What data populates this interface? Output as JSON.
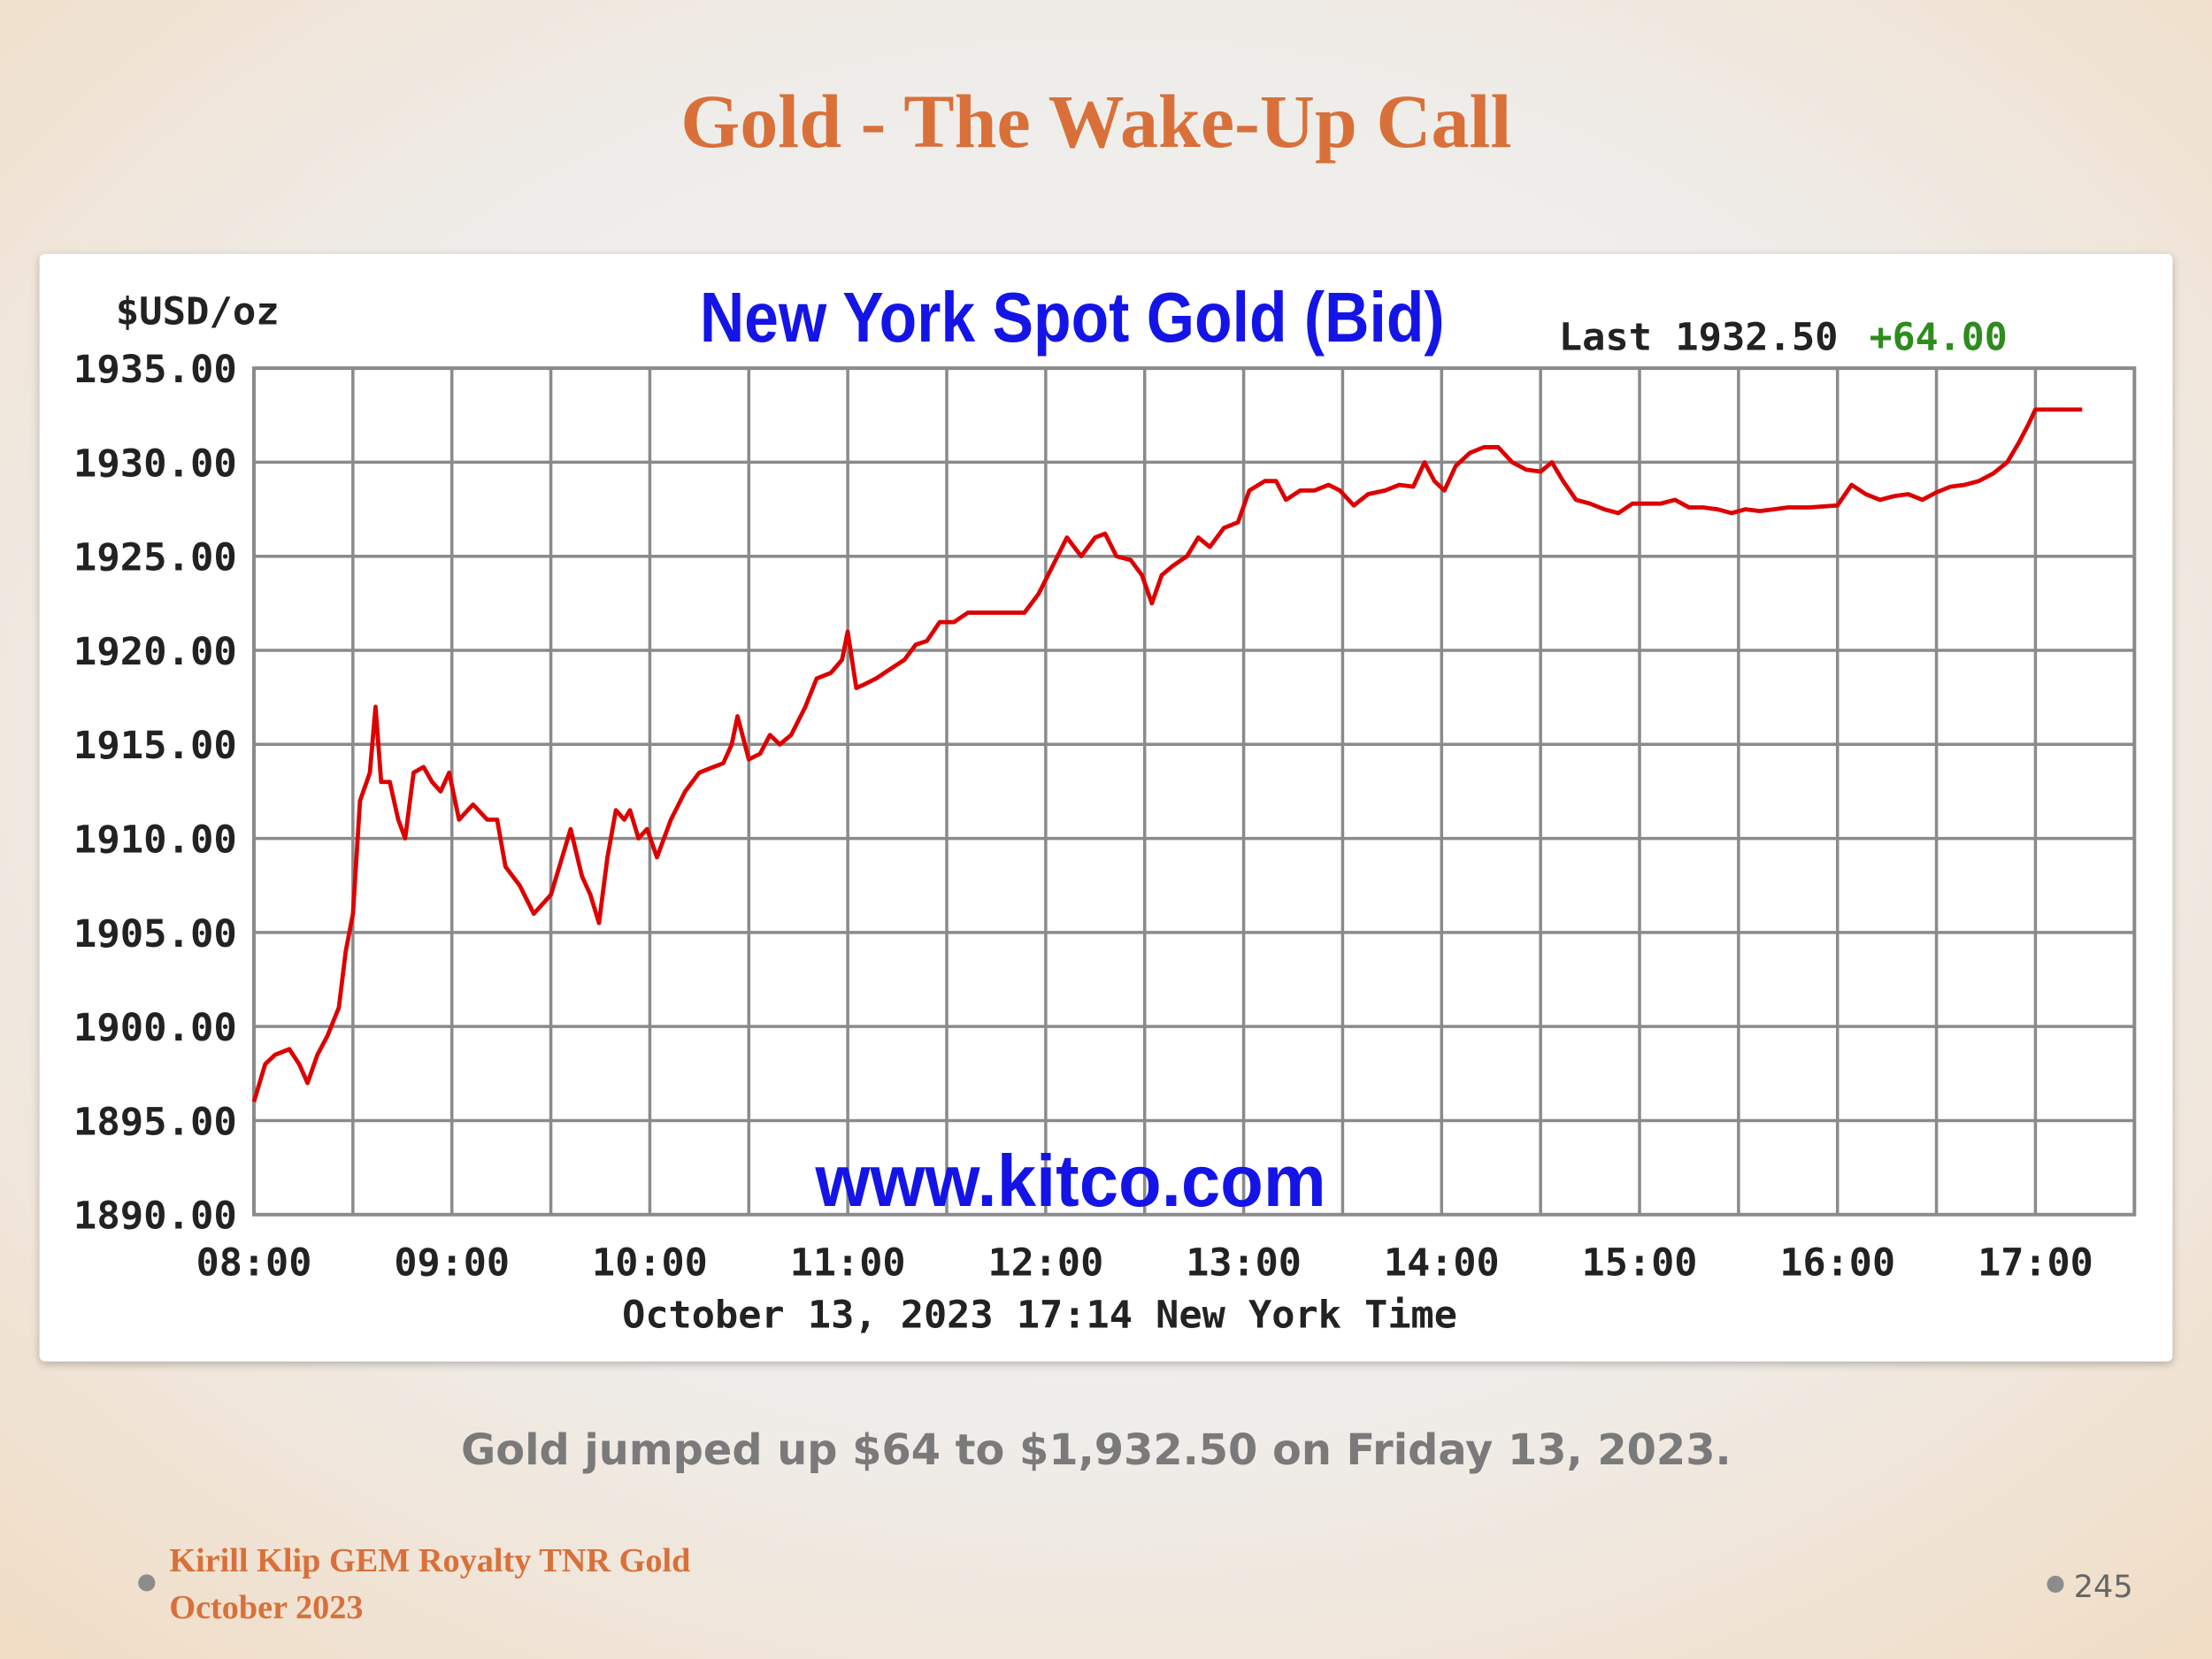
{
  "slide": {
    "title": "Gold - The Wake-Up Call",
    "caption": "Gold jumped up $64 to $1,932.50 on Friday 13, 2023.",
    "footer_lines": [
      "Kirill Klip GEM Royalty TNR Gold",
      "October 2023"
    ],
    "page_number": "245"
  },
  "chart_data": {
    "type": "line",
    "title": "New York Spot Gold (Bid)",
    "y_label": "$USD/oz",
    "x_label": "October 13, 2023 17:14 New York Time",
    "last": "Last 1932.50",
    "change": "+64.00",
    "change_color": "#2e8b1e",
    "watermark": "www.kitco.com",
    "color": "#dd0000",
    "grid": true,
    "xlim": [
      8,
      17.5
    ],
    "ylim": [
      1890,
      1935
    ],
    "xticks": [
      {
        "value": 8,
        "label": "08:00"
      },
      {
        "value": 9,
        "label": "09:00"
      },
      {
        "value": 10,
        "label": "10:00"
      },
      {
        "value": 11,
        "label": "11:00"
      },
      {
        "value": 12,
        "label": "12:00"
      },
      {
        "value": 13,
        "label": "13:00"
      },
      {
        "value": 14,
        "label": "14:00"
      },
      {
        "value": 15,
        "label": "15:00"
      },
      {
        "value": 16,
        "label": "16:00"
      },
      {
        "value": 17,
        "label": "17:00"
      }
    ],
    "x_minor_ticks": [
      8.5,
      9.5,
      10.5,
      11.5,
      12.5,
      13.5,
      14.5,
      15.5,
      16.5,
      17.5
    ],
    "yticks": [
      {
        "value": 1890,
        "label": "1890.00"
      },
      {
        "value": 1895,
        "label": "1895.00"
      },
      {
        "value": 1900,
        "label": "1900.00"
      },
      {
        "value": 1905,
        "label": "1905.00"
      },
      {
        "value": 1910,
        "label": "1910.00"
      },
      {
        "value": 1915,
        "label": "1915.00"
      },
      {
        "value": 1920,
        "label": "1920.00"
      },
      {
        "value": 1925,
        "label": "1925.00"
      },
      {
        "value": 1930,
        "label": "1930.00"
      },
      {
        "value": 1935,
        "label": "1935.00"
      }
    ],
    "x": [
      8.0,
      8.057,
      8.107,
      8.179,
      8.229,
      8.271,
      8.321,
      8.371,
      8.429,
      8.464,
      8.5,
      8.536,
      8.586,
      8.614,
      8.643,
      8.686,
      8.729,
      8.764,
      8.807,
      8.857,
      8.9,
      8.943,
      8.986,
      9.036,
      9.107,
      9.179,
      9.229,
      9.271,
      9.343,
      9.414,
      9.5,
      9.557,
      9.6,
      9.657,
      9.7,
      9.743,
      9.786,
      9.829,
      9.871,
      9.9,
      9.943,
      9.986,
      10.036,
      10.107,
      10.179,
      10.25,
      10.321,
      10.371,
      10.414,
      10.443,
      10.5,
      10.557,
      10.607,
      10.657,
      10.714,
      10.786,
      10.843,
      10.914,
      10.971,
      11.0,
      11.043,
      11.086,
      11.143,
      11.214,
      11.286,
      11.343,
      11.4,
      11.464,
      11.536,
      11.607,
      11.679,
      11.75,
      11.821,
      11.893,
      11.964,
      12.036,
      12.107,
      12.179,
      12.25,
      12.3,
      12.357,
      12.429,
      12.486,
      12.536,
      12.586,
      12.643,
      12.714,
      12.771,
      12.829,
      12.9,
      12.971,
      13.029,
      13.107,
      13.164,
      13.214,
      13.286,
      13.357,
      13.429,
      13.486,
      13.557,
      13.629,
      13.714,
      13.786,
      13.857,
      13.914,
      13.964,
      14.014,
      14.071,
      14.143,
      14.214,
      14.286,
      14.357,
      14.429,
      14.5,
      14.557,
      14.614,
      14.679,
      14.75,
      14.821,
      14.893,
      14.964,
      15.036,
      15.107,
      15.179,
      15.25,
      15.321,
      15.393,
      15.464,
      15.536,
      15.607,
      15.679,
      15.75,
      15.857,
      16.0,
      16.071,
      16.143,
      16.214,
      16.286,
      16.357,
      16.429,
      16.5,
      16.571,
      16.643,
      16.714,
      16.786,
      16.857,
      16.914,
      16.964,
      17.0,
      17.071,
      17.143,
      17.236
    ],
    "values": [
      1896,
      1898,
      1898.5,
      1898.8,
      1898,
      1897,
      1898.5,
      1899.5,
      1901,
      1904,
      1906,
      1912,
      1913.5,
      1917,
      1913,
      1913,
      1911,
      1910,
      1913.5,
      1913.8,
      1913,
      1912.5,
      1913.5,
      1911,
      1911.8,
      1911,
      1911,
      1908.5,
      1907.5,
      1906,
      1907,
      1909,
      1910.5,
      1908,
      1907,
      1905.5,
      1909,
      1911.5,
      1911,
      1911.5,
      1910,
      1910.5,
      1909,
      1911,
      1912.5,
      1913.5,
      1913.8,
      1914,
      1915,
      1916.5,
      1914.2,
      1914.5,
      1915.5,
      1915,
      1915.5,
      1917,
      1918.5,
      1918.8,
      1919.5,
      1921,
      1918,
      1918.2,
      1918.5,
      1919,
      1919.5,
      1920.3,
      1920.5,
      1921.5,
      1921.5,
      1922,
      1922,
      1922,
      1922,
      1922,
      1923,
      1924.5,
      1926,
      1925,
      1926,
      1926.2,
      1925,
      1924.8,
      1924,
      1922.5,
      1924,
      1924.5,
      1925,
      1926,
      1925.5,
      1926.5,
      1926.8,
      1928.5,
      1929,
      1929,
      1928,
      1928.5,
      1928.5,
      1928.8,
      1928.5,
      1927.7,
      1928.3,
      1928.5,
      1928.8,
      1928.7,
      1930,
      1929,
      1928.5,
      1929.8,
      1930.5,
      1930.8,
      1930.8,
      1930,
      1929.6,
      1929.5,
      1930,
      1929,
      1928,
      1927.8,
      1927.5,
      1927.3,
      1927.8,
      1927.8,
      1927.8,
      1928,
      1927.6,
      1927.6,
      1927.5,
      1927.3,
      1927.5,
      1927.4,
      1927.5,
      1927.6,
      1927.6,
      1927.7,
      1928.8,
      1928.3,
      1928,
      1928.2,
      1928.3,
      1928,
      1928.4,
      1928.7,
      1928.8,
      1929,
      1929.4,
      1930,
      1931,
      1932,
      1932.8,
      1932.8,
      1932.8,
      1932.8
    ]
  }
}
